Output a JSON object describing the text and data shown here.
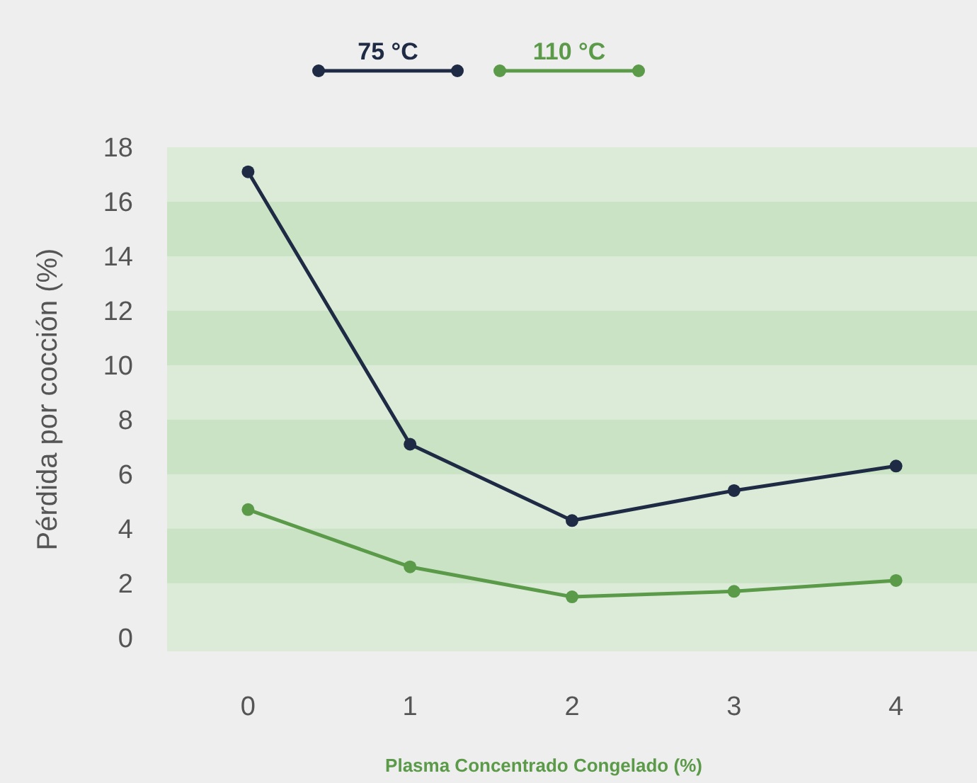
{
  "chart_data": {
    "type": "line",
    "xlabel": "Plasma Concentrado Congelado (%)",
    "ylabel": "Pérdida por cocción (%)",
    "categories": [
      "0",
      "1",
      "2",
      "3",
      "4"
    ],
    "series": [
      {
        "name": "75 °C",
        "color": "#1f2a44",
        "values": [
          17.1,
          7.1,
          4.3,
          5.4,
          6.3
        ]
      },
      {
        "name": "110 °C",
        "color": "#5a9a48",
        "values": [
          4.7,
          2.6,
          1.5,
          1.7,
          2.1
        ]
      }
    ],
    "ylim": [
      -0.5,
      18
    ],
    "yticks": [
      0,
      2,
      4,
      6,
      8,
      10,
      12,
      14,
      16,
      18
    ],
    "legend": "top",
    "marker": "circle",
    "line_style": "solid"
  }
}
